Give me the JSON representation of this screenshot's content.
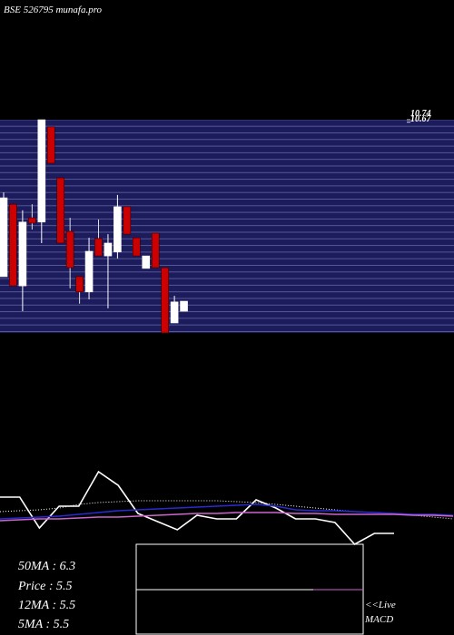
{
  "chart_data": [
    {
      "type": "candlestick",
      "title": "BSE 526795 munafa.pro",
      "ylim": [
        4.76,
        10.74
      ],
      "yticks": [
        10.74,
        10.67
      ],
      "up_color": "#ffffff",
      "down_color": "#cc0000",
      "open": [
        6.34,
        8.37,
        6.08,
        7.99,
        7.87,
        10.54,
        9.11,
        7.61,
        6.34,
        5.91,
        7.41,
        6.92,
        7.03,
        8.3,
        7.43,
        6.57,
        7.56,
        6.59,
        5.04,
        5.37
      ],
      "high": [
        8.7,
        8.37,
        8.2,
        8.37,
        10.74,
        10.54,
        9.11,
        7.99,
        6.34,
        7.43,
        7.94,
        7.53,
        8.63,
        8.3,
        7.43,
        6.92,
        7.56,
        6.59,
        5.8,
        5.65
      ],
      "low": [
        6.34,
        6.08,
        5.37,
        7.66,
        7.28,
        9.52,
        7.28,
        6.01,
        5.58,
        5.7,
        6.92,
        5.45,
        6.85,
        7.53,
        6.92,
        6.57,
        6.59,
        4.76,
        5.04,
        5.37
      ],
      "close": [
        8.55,
        6.08,
        7.87,
        7.84,
        10.74,
        9.52,
        7.28,
        6.59,
        5.91,
        7.05,
        6.92,
        7.28,
        8.3,
        7.53,
        6.92,
        6.92,
        6.59,
        4.76,
        5.63,
        5.65
      ]
    },
    {
      "type": "line",
      "ylim": [
        0,
        100
      ],
      "series": [
        {
          "color": "#ffffff",
          "style": "solid",
          "values": [
            52,
            52,
            18,
            42,
            42,
            80,
            65,
            34,
            25,
            16,
            32,
            28,
            28,
            49,
            40,
            28,
            28,
            24,
            0,
            12,
            12
          ]
        },
        {
          "color": "#ffffff",
          "style": "dotted",
          "values": [
            36,
            37,
            38,
            40,
            44,
            46,
            47,
            48,
            48,
            48,
            48,
            48,
            47,
            46,
            44,
            42,
            40,
            38,
            36,
            35,
            34,
            32,
            30,
            28
          ]
        },
        {
          "color": "#2a2ad0",
          "style": "solid",
          "values": [
            28,
            29,
            30,
            31,
            33,
            35,
            37,
            38,
            39,
            40,
            41,
            42,
            43,
            44,
            42,
            38,
            37,
            37,
            36,
            35,
            34,
            33,
            33,
            32
          ]
        },
        {
          "color": "#cc66cc",
          "style": "solid",
          "values": [
            26,
            27,
            28,
            28,
            29,
            30,
            30,
            31,
            32,
            33,
            34,
            34,
            35,
            35,
            35,
            34,
            34,
            33,
            33,
            33,
            33,
            32,
            32,
            31
          ]
        }
      ],
      "annotations": [
        "50MA : 6.3",
        "Price  : 5.5",
        "12MA : 5.5",
        "5MA : 5.5",
        "<<Live",
        "MACD"
      ]
    }
  ]
}
